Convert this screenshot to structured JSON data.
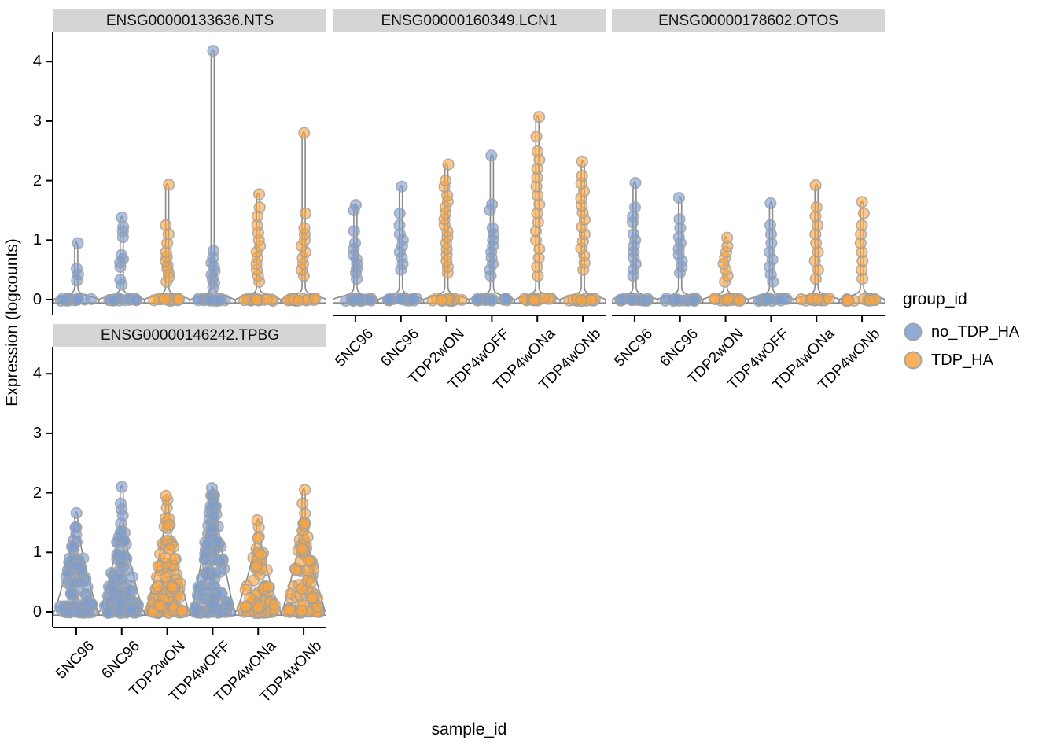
{
  "y_axis": {
    "label": "Expression (logcounts)",
    "ticks": [
      0,
      1,
      2,
      3,
      4
    ],
    "range": [
      -0.25,
      4.45
    ]
  },
  "x_axis": {
    "label": "sample_id",
    "categories": [
      "5NC96",
      "6NC96",
      "TDP2wON",
      "TDP4wOFF",
      "TDP4wONa",
      "TDP4wONb"
    ]
  },
  "legend": {
    "title": "group_id",
    "entries": [
      {
        "label": "no_TDP_HA",
        "color": "#7B9CD0"
      },
      {
        "label": "TDP_HA",
        "color": "#FAA43F"
      }
    ]
  },
  "colors": {
    "no_TDP_HA": "#7B9CD0",
    "TDP_HA": "#FAA43F",
    "point_stroke": "#9DA0A3",
    "violin_stroke": "#8A8A8A",
    "violin_fill": "#F8F8F8",
    "strip_bg": "#D5D5D5",
    "axis": "#000000"
  },
  "chart_data": {
    "type": "violin",
    "note": "Faceted violin + jitter plot of single-cell expression (logcounts) per sample_id, colored by group_id. Values estimated from pixels; each violin has a dense band of zero-expression points plus a column of expressing cells up to max.",
    "legend_position": "right",
    "facets": [
      {
        "title": "ENSG00000133636.NTS",
        "row": 0,
        "col": 0,
        "violins": [
          {
            "sample": "5NC96",
            "group": "no_TDP_HA",
            "shape": "spike",
            "max": 0.95,
            "n_zero": 16,
            "points": [
              0.32,
              0.42,
              0.52,
              0.95
            ]
          },
          {
            "sample": "6NC96",
            "group": "no_TDP_HA",
            "shape": "spike",
            "max": 1.38,
            "n_zero": 16,
            "points": [
              0.25,
              0.33,
              0.55,
              0.62,
              0.68,
              0.75,
              1.05,
              1.15,
              1.22,
              1.38
            ]
          },
          {
            "sample": "TDP2wON",
            "group": "TDP_HA",
            "shape": "spike",
            "max": 1.93,
            "n_zero": 16,
            "points": [
              0.3,
              0.38,
              0.45,
              0.52,
              0.58,
              0.65,
              0.72,
              0.8,
              0.95,
              1.1,
              1.25,
              1.93
            ]
          },
          {
            "sample": "TDP4wOFF",
            "group": "no_TDP_HA",
            "shape": "spike",
            "max": 4.18,
            "n_zero": 16,
            "points": [
              0.2,
              0.28,
              0.35,
              0.42,
              0.48,
              0.55,
              0.62,
              0.7,
              0.82,
              4.18
            ]
          },
          {
            "sample": "TDP4wONa",
            "group": "TDP_HA",
            "shape": "spike",
            "max": 1.77,
            "n_zero": 16,
            "points": [
              0.3,
              0.4,
              0.5,
              0.6,
              0.7,
              0.8,
              0.9,
              1.0,
              1.12,
              1.25,
              1.4,
              1.55,
              1.77
            ]
          },
          {
            "sample": "TDP4wONb",
            "group": "TDP_HA",
            "shape": "spike",
            "max": 2.8,
            "n_zero": 16,
            "points": [
              0.4,
              0.5,
              0.6,
              0.7,
              0.8,
              0.9,
              1.0,
              1.1,
              1.2,
              1.45,
              2.8
            ]
          }
        ]
      },
      {
        "title": "ENSG00000160349.LCN1",
        "row": 0,
        "col": 1,
        "violins": [
          {
            "sample": "5NC96",
            "group": "no_TDP_HA",
            "shape": "spike",
            "max": 1.59,
            "n_zero": 16,
            "points": [
              0.35,
              0.45,
              0.52,
              0.6,
              0.68,
              0.75,
              0.85,
              0.95,
              1.15,
              1.5,
              1.59
            ]
          },
          {
            "sample": "6NC96",
            "group": "no_TDP_HA",
            "shape": "spike",
            "max": 1.9,
            "n_zero": 16,
            "points": [
              0.5,
              0.6,
              0.7,
              0.8,
              0.9,
              1.0,
              1.1,
              1.25,
              1.45,
              1.9
            ]
          },
          {
            "sample": "TDP2wON",
            "group": "TDP_HA",
            "shape": "spike",
            "max": 2.27,
            "n_zero": 16,
            "points": [
              0.45,
              0.55,
              0.65,
              0.75,
              0.85,
              0.95,
              1.05,
              1.15,
              1.25,
              1.35,
              1.45,
              1.55,
              1.65,
              1.75,
              1.9,
              2.0,
              2.27
            ]
          },
          {
            "sample": "TDP4wOFF",
            "group": "no_TDP_HA",
            "shape": "spike",
            "max": 2.42,
            "n_zero": 16,
            "points": [
              0.4,
              0.5,
              0.6,
              0.7,
              0.8,
              0.9,
              1.0,
              1.1,
              1.2,
              1.5,
              1.6,
              2.42
            ]
          },
          {
            "sample": "TDP4wONa",
            "group": "TDP_HA",
            "shape": "spike",
            "max": 3.07,
            "n_zero": 16,
            "points": [
              0.4,
              0.55,
              0.7,
              0.85,
              1.0,
              1.15,
              1.3,
              1.45,
              1.6,
              1.75,
              1.9,
              2.05,
              2.2,
              2.35,
              2.49,
              2.74,
              3.07
            ]
          },
          {
            "sample": "TDP4wONb",
            "group": "TDP_HA",
            "shape": "spike",
            "max": 2.32,
            "n_zero": 16,
            "points": [
              0.5,
              0.62,
              0.74,
              0.86,
              0.98,
              1.1,
              1.22,
              1.34,
              1.46,
              1.58,
              1.7,
              1.82,
              1.95,
              2.08,
              2.32
            ]
          }
        ]
      },
      {
        "title": "ENSG00000178602.OTOS",
        "row": 0,
        "col": 2,
        "violins": [
          {
            "sample": "5NC96",
            "group": "no_TDP_HA",
            "shape": "spike",
            "max": 1.96,
            "n_zero": 16,
            "points": [
              0.4,
              0.5,
              0.6,
              0.7,
              0.8,
              0.9,
              1.0,
              1.1,
              1.3,
              1.4,
              1.55,
              1.96
            ]
          },
          {
            "sample": "6NC96",
            "group": "no_TDP_HA",
            "shape": "spike",
            "max": 1.71,
            "n_zero": 16,
            "points": [
              0.45,
              0.55,
              0.65,
              0.75,
              0.85,
              0.95,
              1.05,
              1.2,
              1.35,
              1.71
            ]
          },
          {
            "sample": "TDP2wON",
            "group": "TDP_HA",
            "shape": "spike",
            "max": 1.04,
            "n_zero": 16,
            "points": [
              0.3,
              0.4,
              0.5,
              0.6,
              0.7,
              0.8,
              0.9,
              1.04
            ]
          },
          {
            "sample": "TDP4wOFF",
            "group": "no_TDP_HA",
            "shape": "spike",
            "max": 1.62,
            "n_zero": 16,
            "points": [
              0.3,
              0.42,
              0.55,
              0.67,
              0.8,
              0.95,
              1.1,
              1.25,
              1.62
            ]
          },
          {
            "sample": "TDP4wONa",
            "group": "TDP_HA",
            "shape": "spike",
            "max": 1.92,
            "n_zero": 16,
            "points": [
              0.35,
              0.5,
              0.65,
              0.8,
              0.95,
              1.1,
              1.25,
              1.4,
              1.55,
              1.92
            ]
          },
          {
            "sample": "TDP4wONb",
            "group": "TDP_HA",
            "shape": "spike",
            "max": 1.64,
            "n_zero": 16,
            "points": [
              0.35,
              0.5,
              0.65,
              0.8,
              0.95,
              1.1,
              1.25,
              1.45,
              1.64
            ]
          }
        ]
      },
      {
        "title": "ENSG00000146242.TPBG",
        "row": 1,
        "col": 0,
        "violins": [
          {
            "sample": "5NC96",
            "group": "no_TDP_HA",
            "shape": "cone",
            "max": 1.66,
            "cone_top": 1.45,
            "n_cloud": 70,
            "n_zero": 16,
            "points": [
              1.66
            ]
          },
          {
            "sample": "6NC96",
            "group": "no_TDP_HA",
            "shape": "cone",
            "max": 2.1,
            "cone_top": 1.5,
            "n_cloud": 75,
            "n_zero": 16,
            "points": [
              1.62,
              1.72,
              1.82,
              2.1
            ]
          },
          {
            "sample": "TDP2wON",
            "group": "TDP_HA",
            "shape": "cone",
            "max": 1.95,
            "cone_top": 1.6,
            "n_cloud": 85,
            "n_zero": 16,
            "points": [
              1.75,
              1.88,
              1.95
            ]
          },
          {
            "sample": "TDP4wOFF",
            "group": "no_TDP_HA",
            "shape": "cone",
            "max": 2.08,
            "cone_top": 2.0,
            "n_cloud": 110,
            "n_zero": 16,
            "points": [
              2.08
            ]
          },
          {
            "sample": "TDP4wONa",
            "group": "TDP_HA",
            "shape": "cone",
            "max": 1.54,
            "cone_top": 1.3,
            "n_cloud": 55,
            "n_zero": 16,
            "points": [
              1.42,
              1.54
            ]
          },
          {
            "sample": "TDP4wONb",
            "group": "TDP_HA",
            "shape": "cone",
            "max": 2.05,
            "cone_top": 1.5,
            "n_cloud": 70,
            "n_zero": 16,
            "points": [
              1.65,
              1.82,
              2.05
            ]
          }
        ]
      }
    ]
  }
}
